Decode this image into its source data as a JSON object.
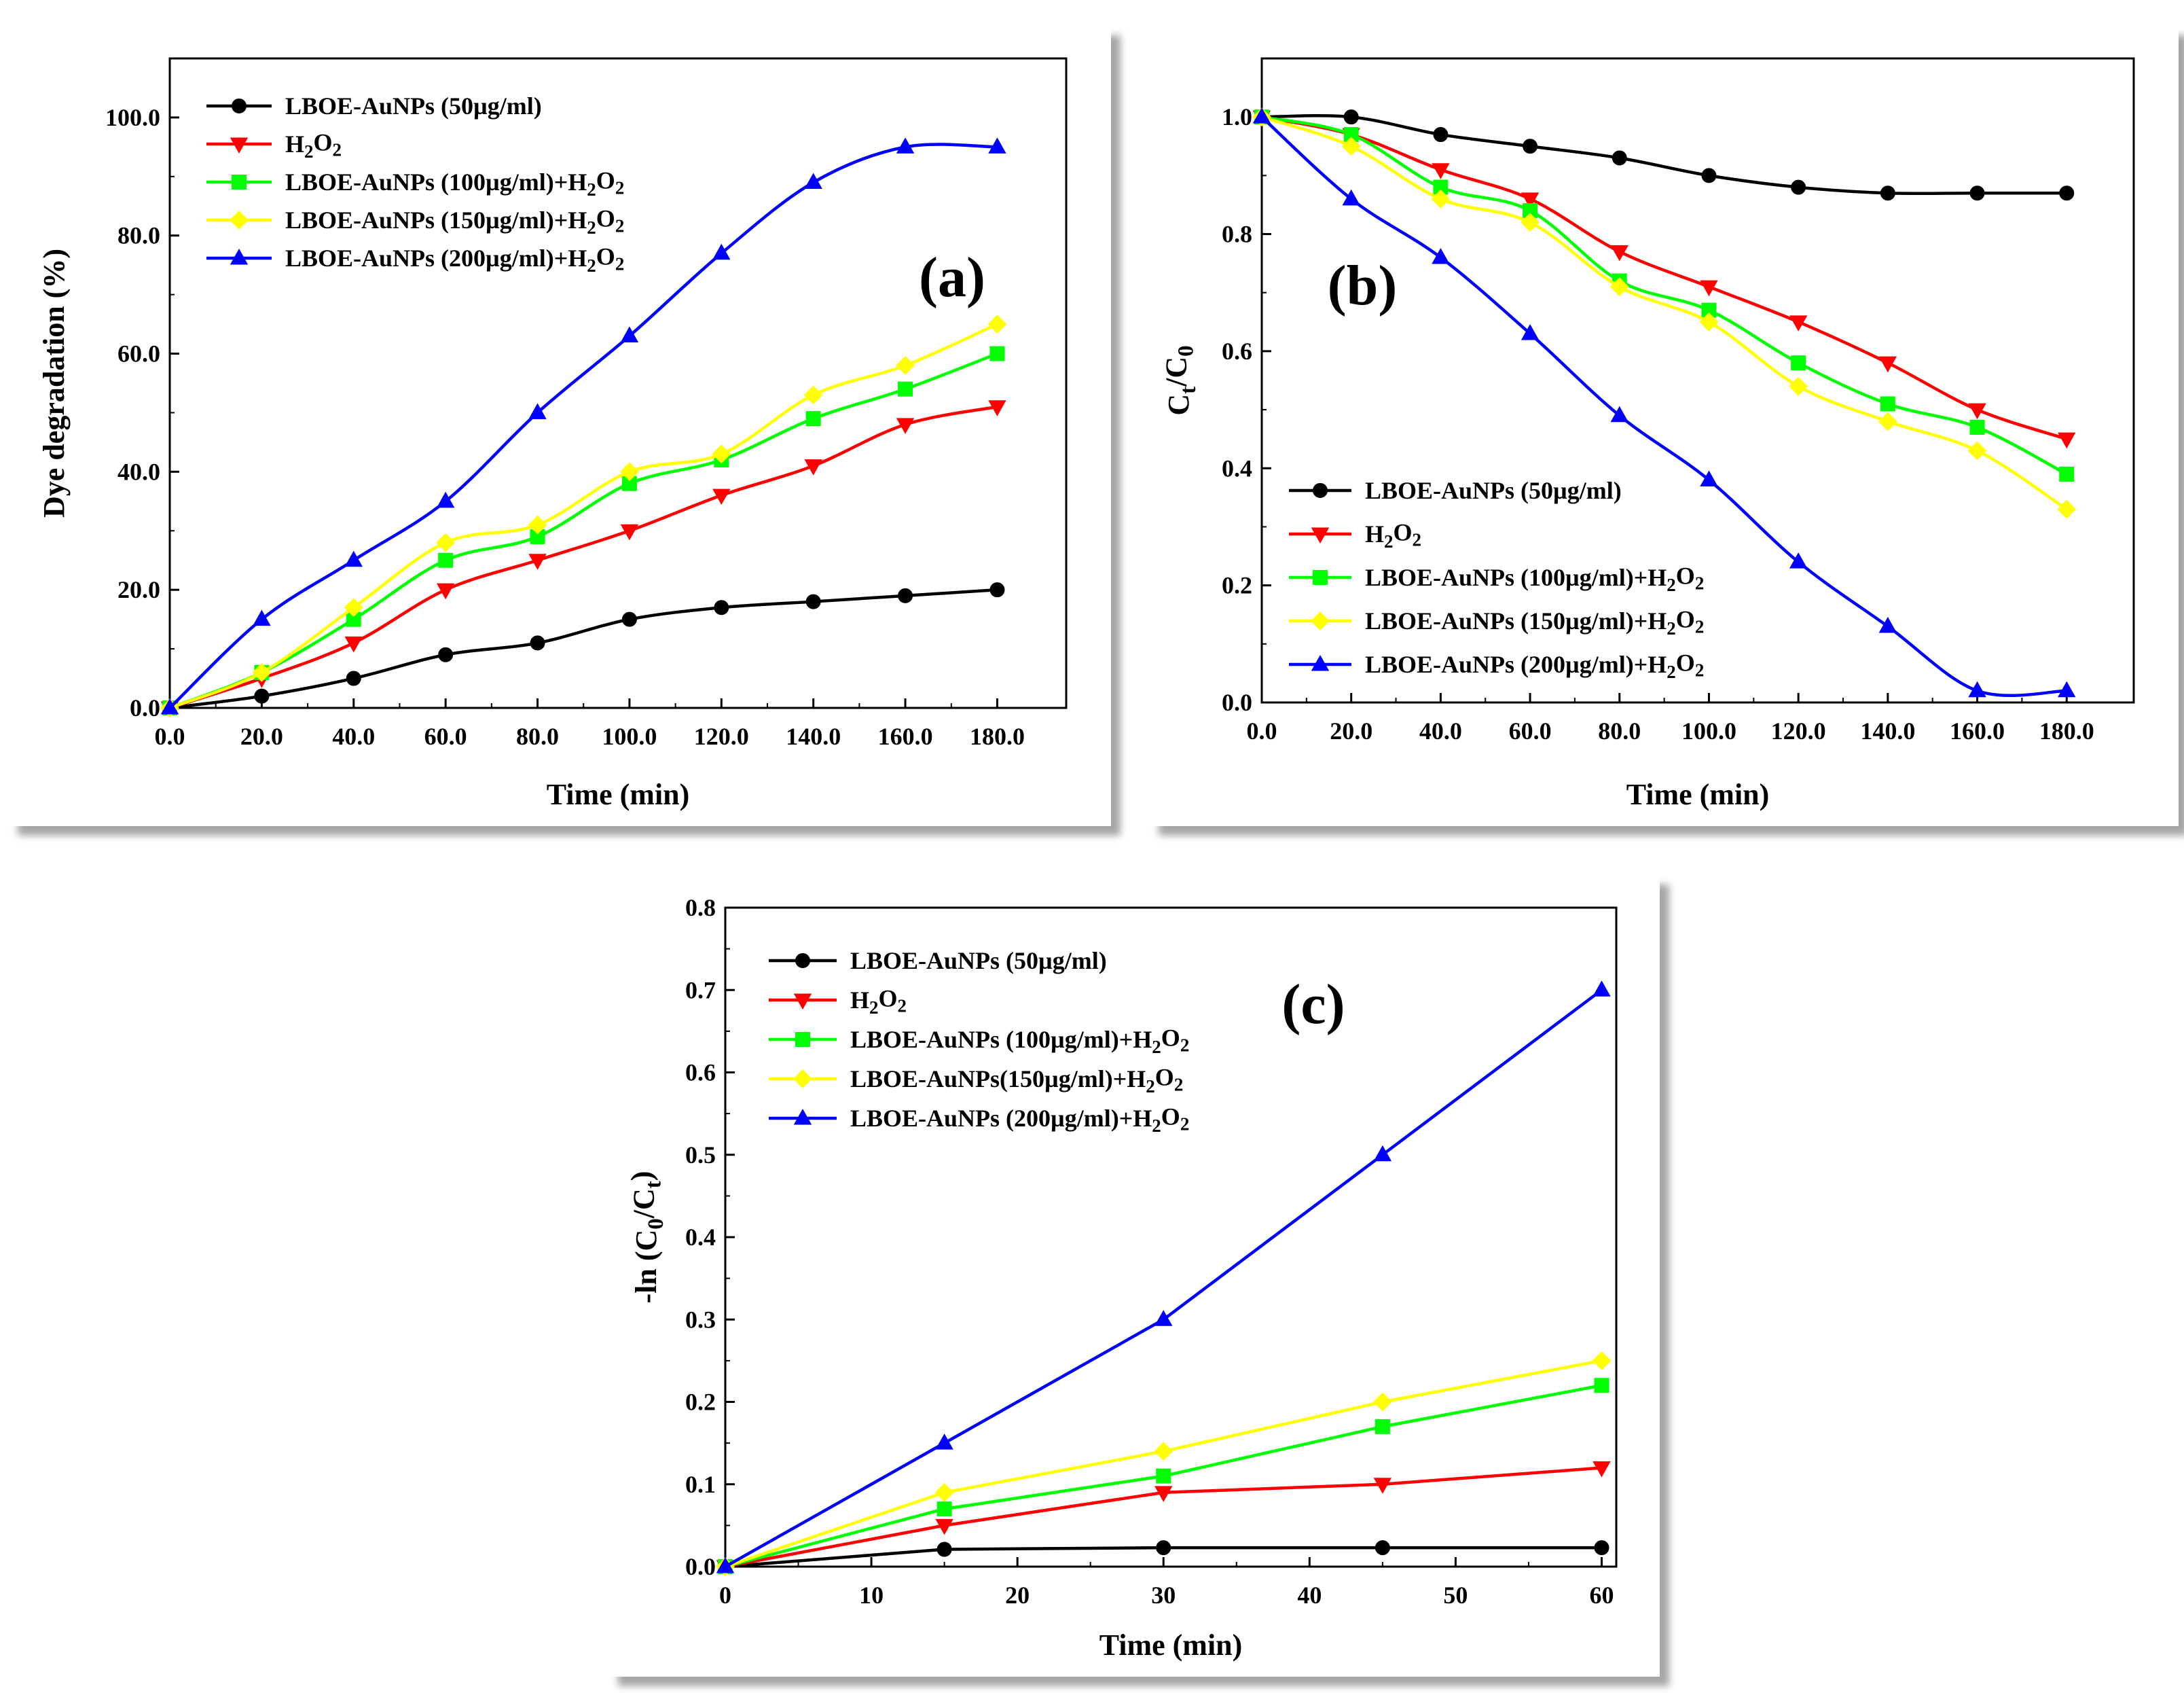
{
  "chart_data": [
    {
      "id": "a",
      "type": "line",
      "panel_label": "(a)",
      "xlabel": "Time (min)",
      "ylabel": "Dye degradation (%)",
      "xlim": [
        0,
        195
      ],
      "ylim": [
        0,
        110
      ],
      "xticks": [
        0,
        20,
        40,
        60,
        80,
        100,
        120,
        140,
        160,
        180
      ],
      "xtick_labels": [
        "0.0",
        "20.0",
        "40.0",
        "60.0",
        "80.0",
        "100.0",
        "120.0",
        "140.0",
        "160.0",
        "180.0"
      ],
      "yticks": [
        0,
        20,
        40,
        60,
        80,
        100
      ],
      "ytick_labels": [
        "0.0",
        "20.0",
        "40.0",
        "60.0",
        "80.0",
        "100.0"
      ],
      "legend_position": "top-left",
      "x": [
        0,
        20,
        40,
        60,
        80,
        100,
        120,
        140,
        160,
        180
      ],
      "series": [
        {
          "key": "s1",
          "name": "LBOE-AuNPs (50µg/ml)",
          "color": "#000000",
          "marker": "circle",
          "values": [
            0,
            2,
            5,
            9,
            11,
            15,
            17,
            18,
            19,
            20
          ]
        },
        {
          "key": "s2",
          "name": "H₂O₂",
          "color": "#ff0000",
          "marker": "triangle-down",
          "values": [
            0,
            5,
            11,
            20,
            25,
            30,
            36,
            41,
            48,
            51
          ]
        },
        {
          "key": "s3",
          "name": "LBOE-AuNPs (100µg/ml)+H₂O₂",
          "color": "#00ff00",
          "marker": "square",
          "values": [
            0,
            6,
            15,
            25,
            29,
            38,
            42,
            49,
            54,
            60
          ]
        },
        {
          "key": "s4",
          "name": "LBOE-AuNPs (150µg/ml)+H₂O₂",
          "color": "#ffff00",
          "marker": "diamond",
          "values": [
            0,
            6,
            17,
            28,
            31,
            40,
            43,
            53,
            58,
            65
          ]
        },
        {
          "key": "s5",
          "name": "LBOE-AuNPs (200µg/ml)+H₂O₂",
          "color": "#0000ff",
          "marker": "triangle-up",
          "values": [
            0,
            15,
            25,
            35,
            50,
            63,
            77,
            89,
            95,
            95
          ]
        }
      ]
    },
    {
      "id": "b",
      "type": "line",
      "panel_label": "(b)",
      "xlabel": "Time (min)",
      "ylabel": "Ct/C0",
      "xlim": [
        0,
        195
      ],
      "ylim": [
        0,
        1.1
      ],
      "xticks": [
        0,
        20,
        40,
        60,
        80,
        100,
        120,
        140,
        160,
        180
      ],
      "xtick_labels": [
        "0.0",
        "20.0",
        "40.0",
        "60.0",
        "80.0",
        "100.0",
        "120.0",
        "140.0",
        "160.0",
        "180.0"
      ],
      "yticks": [
        0,
        0.2,
        0.4,
        0.6,
        0.8,
        1.0
      ],
      "ytick_labels": [
        "0.0",
        "0.2",
        "0.4",
        "0.6",
        "0.8",
        "1.0"
      ],
      "legend_position": "bottom-left",
      "x": [
        0,
        20,
        40,
        60,
        80,
        100,
        120,
        140,
        160,
        180
      ],
      "series": [
        {
          "key": "s1",
          "name": "LBOE-AuNPs (50µg/ml)",
          "color": "#000000",
          "marker": "circle",
          "values": [
            1.0,
            1.0,
            0.97,
            0.95,
            0.93,
            0.9,
            0.88,
            0.87,
            0.87,
            0.87
          ]
        },
        {
          "key": "s2",
          "name": "H₂O₂",
          "color": "#ff0000",
          "marker": "triangle-down",
          "values": [
            1.0,
            0.97,
            0.91,
            0.86,
            0.77,
            0.71,
            0.65,
            0.58,
            0.5,
            0.45
          ]
        },
        {
          "key": "s3",
          "name": "LBOE-AuNPs (100µg/ml)+H₂O₂",
          "color": "#00ff00",
          "marker": "square",
          "values": [
            1.0,
            0.97,
            0.88,
            0.84,
            0.72,
            0.67,
            0.58,
            0.51,
            0.47,
            0.39
          ]
        },
        {
          "key": "s4",
          "name": "LBOE-AuNPs (150µg/ml)+H₂O₂",
          "color": "#ffff00",
          "marker": "diamond",
          "values": [
            1.0,
            0.95,
            0.86,
            0.82,
            0.71,
            0.65,
            0.54,
            0.48,
            0.43,
            0.33
          ]
        },
        {
          "key": "s5",
          "name": "LBOE-AuNPs (200µg/ml)+H₂O₂",
          "color": "#0000ff",
          "marker": "triangle-up",
          "values": [
            1.0,
            0.86,
            0.76,
            0.63,
            0.49,
            0.38,
            0.24,
            0.13,
            0.02,
            0.02
          ]
        }
      ]
    },
    {
      "id": "c",
      "type": "line",
      "panel_label": "(c)",
      "xlabel": "Time (min)",
      "ylabel": "-ln (C0/Ct)",
      "xlim": [
        0,
        61
      ],
      "ylim": [
        0,
        0.8
      ],
      "xticks": [
        0,
        10,
        20,
        30,
        40,
        50,
        60
      ],
      "xtick_labels": [
        "0",
        "10",
        "20",
        "30",
        "40",
        "50",
        "60"
      ],
      "yticks": [
        0,
        0.1,
        0.2,
        0.3,
        0.4,
        0.5,
        0.6,
        0.7,
        0.8
      ],
      "ytick_labels": [
        "0.0",
        "0.1",
        "0.2",
        "0.3",
        "0.4",
        "0.5",
        "0.6",
        "0.7",
        "0.8"
      ],
      "legend_position": "top-left",
      "x": [
        0,
        15,
        30,
        45,
        60
      ],
      "series": [
        {
          "key": "s1",
          "name": "LBOE-AuNPs (50µg/ml)",
          "color": "#000000",
          "marker": "circle",
          "values": [
            0,
            0.021,
            0.023,
            0.023,
            0.023
          ]
        },
        {
          "key": "s2",
          "name": "H₂O₂",
          "color": "#ff0000",
          "marker": "triangle-down",
          "values": [
            0,
            0.05,
            0.09,
            0.1,
            0.12
          ]
        },
        {
          "key": "s3",
          "name": "LBOE-AuNPs (100µg/ml)+H₂O₂",
          "color": "#00ff00",
          "marker": "square",
          "values": [
            0,
            0.07,
            0.11,
            0.17,
            0.22
          ]
        },
        {
          "key": "s4",
          "name": "LBOE-AuNPs(150µg/ml)+H₂O₂",
          "color": "#ffff00",
          "marker": "diamond",
          "values": [
            0,
            0.09,
            0.14,
            0.2,
            0.25
          ]
        },
        {
          "key": "s5",
          "name": "LBOE-AuNPs (200µg/ml)+H₂O₂",
          "color": "#0000ff",
          "marker": "triangle-up",
          "values": [
            0,
            0.15,
            0.3,
            0.5,
            0.7
          ]
        }
      ]
    }
  ]
}
